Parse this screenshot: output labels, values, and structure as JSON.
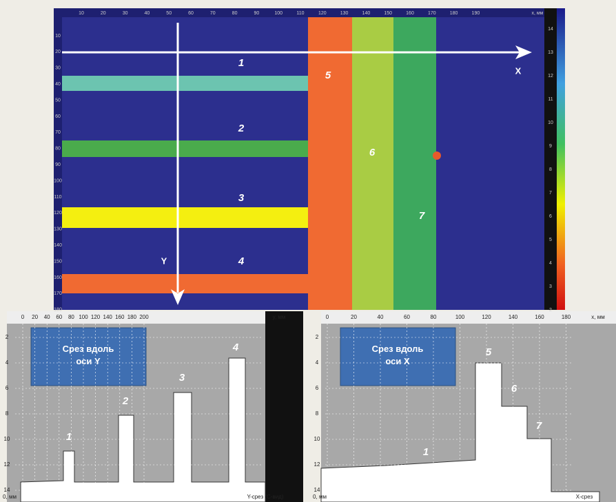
{
  "scan": {
    "x_ticks": [
      10,
      20,
      30,
      40,
      50,
      60,
      70,
      80,
      90,
      100,
      110,
      120,
      130,
      140,
      150,
      160,
      170,
      180,
      190
    ],
    "x_unit": "x, мм",
    "y_ticks": [
      10,
      20,
      30,
      40,
      50,
      60,
      70,
      80,
      90,
      100,
      110,
      120,
      130,
      140,
      150,
      160,
      170,
      180
    ],
    "colorbar_ticks": [
      14,
      13,
      12,
      11,
      10,
      9,
      8,
      7,
      6,
      5,
      4,
      3,
      2
    ],
    "axis_x": "X",
    "axis_y": "Y",
    "labels": [
      "1",
      "2",
      "3",
      "4",
      "5",
      "6",
      "7"
    ]
  },
  "slice_y": {
    "title": "Срез вдоль оси Y",
    "x_ticks": [
      0,
      20,
      40,
      60,
      80,
      100,
      120,
      140,
      160,
      180,
      200
    ],
    "x_unit": "y, мм",
    "y_ticks": [
      2,
      4,
      6,
      8,
      10,
      12,
      14
    ],
    "corner": "0, мм",
    "footer": "Y-срез (С-вид)",
    "labels": [
      "1",
      "2",
      "3",
      "4"
    ]
  },
  "slice_x": {
    "title": "Срез вдоль оси X",
    "x_ticks": [
      0,
      20,
      40,
      60,
      80,
      100,
      120,
      140,
      160,
      180
    ],
    "x_unit": "x, мм",
    "y_ticks": [
      2,
      4,
      6,
      8,
      10,
      12,
      14
    ],
    "corner": "0, мм",
    "footer": "X-срез",
    "labels": [
      "5",
      "6",
      "7",
      "1"
    ]
  }
}
